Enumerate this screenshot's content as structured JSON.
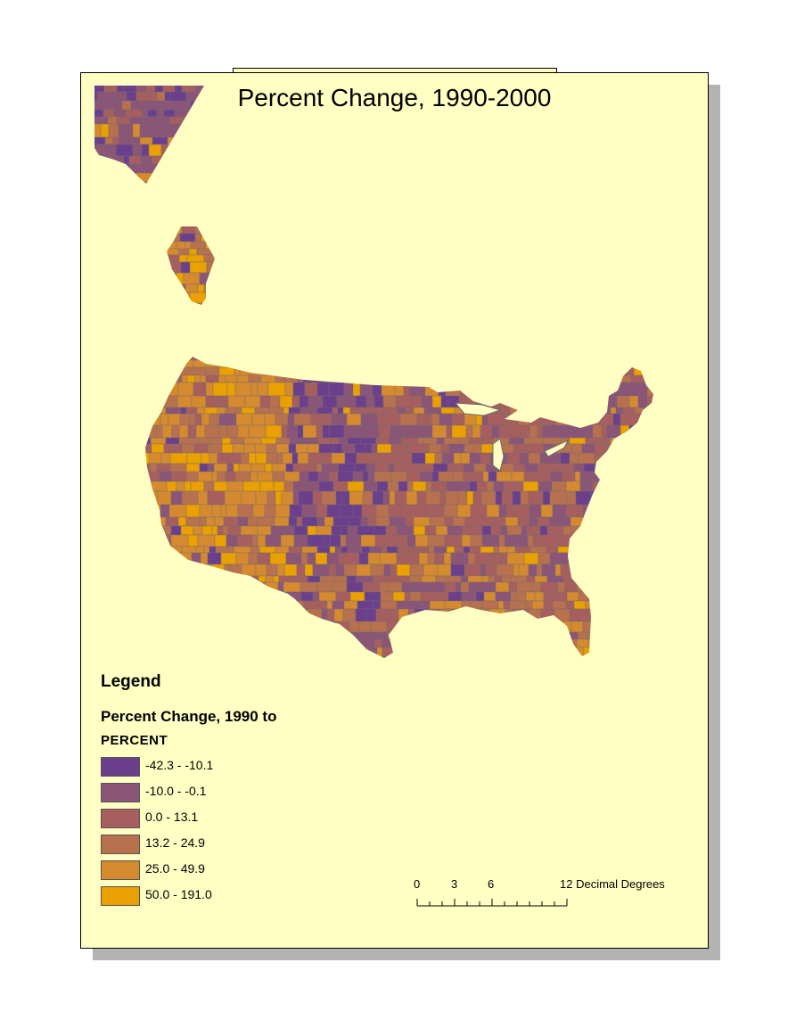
{
  "title": "Percent Change, 1990-2000",
  "legend": {
    "heading": "Legend",
    "field_label": "Percent Change, 1990 to",
    "unit_label": "PERCENT",
    "classes": [
      {
        "label": "-42.3 - -10.1",
        "color": "#6b3f8c"
      },
      {
        "label": "-10.0 - -0.1",
        "color": "#8b5577"
      },
      {
        "label": "0.0 - 13.1",
        "color": "#a65f5e"
      },
      {
        "label": "13.2 - 24.9",
        "color": "#b8714e"
      },
      {
        "label": "25.0 - 49.9",
        "color": "#d58a2f"
      },
      {
        "label": "50.0 - 191.0",
        "color": "#e9a000"
      }
    ]
  },
  "scalebar": {
    "ticks": [
      "0",
      "3",
      "6",
      "12"
    ],
    "unit": "Decimal Degrees"
  },
  "colors": {
    "page_background": "#ffffc4",
    "shadow": "#b3b3b3",
    "county_border": "#6e6e6e"
  }
}
